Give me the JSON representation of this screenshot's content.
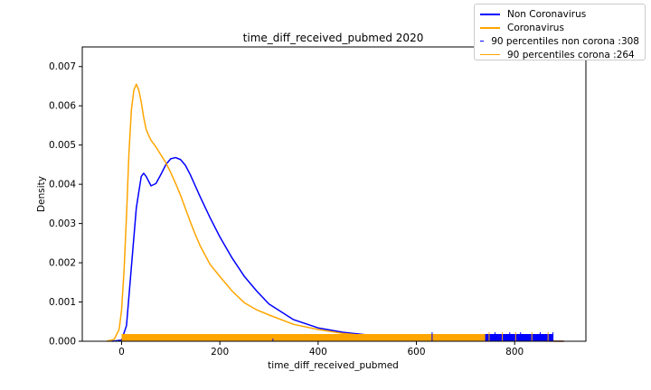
{
  "colors": {
    "non_corona": "#0000ff",
    "corona": "#ffa500"
  },
  "chart_data": {
    "type": "line",
    "title": "time_diff_received_pubmed 2020",
    "xlabel": "time_diff_received_pubmed",
    "ylabel": "Density",
    "xlim": [
      -80,
      945
    ],
    "ylim": [
      0,
      0.0075
    ],
    "xticks": [
      0,
      200,
      400,
      600,
      800
    ],
    "yticks": [
      0.0,
      0.001,
      0.002,
      0.003,
      0.004,
      0.005,
      0.006,
      0.007
    ],
    "ytick_labels": [
      "0.000",
      "0.001",
      "0.002",
      "0.003",
      "0.004",
      "0.005",
      "0.006",
      "0.007"
    ],
    "grid": false,
    "legend_position": "top-right",
    "series": [
      {
        "name": "Non Coronavirus",
        "kind": "density",
        "x": [
          -20,
          0,
          10,
          20,
          30,
          40,
          45,
          50,
          60,
          70,
          80,
          90,
          100,
          110,
          120,
          130,
          140,
          150,
          160,
          180,
          200,
          225,
          250,
          275,
          300,
          350,
          400,
          450,
          500,
          550,
          600,
          650,
          700,
          750,
          800,
          850,
          900
        ],
        "y": [
          0.0,
          3e-05,
          0.0004,
          0.0019,
          0.0034,
          0.0042,
          0.00428,
          0.0042,
          0.00396,
          0.00402,
          0.00425,
          0.0045,
          0.00465,
          0.00468,
          0.00463,
          0.00448,
          0.00424,
          0.00396,
          0.00368,
          0.00315,
          0.00266,
          0.00212,
          0.00165,
          0.00128,
          0.00095,
          0.00055,
          0.00034,
          0.00023,
          0.00016,
          0.00012,
          8e-05,
          6e-05,
          5e-05,
          4e-05,
          3e-05,
          1e-05,
          0.0
        ]
      },
      {
        "name": "Coronavirus",
        "kind": "density",
        "x": [
          -30,
          -15,
          -5,
          0,
          5,
          10,
          15,
          20,
          25,
          30,
          35,
          40,
          45,
          50,
          55,
          60,
          70,
          80,
          90,
          100,
          110,
          120,
          130,
          140,
          150,
          160,
          180,
          200,
          225,
          250,
          275,
          300,
          350,
          400,
          450,
          500,
          550,
          600,
          650,
          700,
          750,
          800,
          850,
          900
        ],
        "y": [
          0.0,
          5e-05,
          0.0003,
          0.0008,
          0.0018,
          0.0032,
          0.0048,
          0.0059,
          0.0064,
          0.00655,
          0.0064,
          0.0061,
          0.0057,
          0.0054,
          0.00525,
          0.00512,
          0.00495,
          0.00475,
          0.00455,
          0.0043,
          0.00402,
          0.00372,
          0.00338,
          0.00304,
          0.00272,
          0.00243,
          0.00196,
          0.00165,
          0.00128,
          0.00098,
          0.0008,
          0.00067,
          0.00043,
          0.0003,
          0.0002,
          0.00014,
          0.0001,
          7e-05,
          5e-05,
          3e-05,
          2e-05,
          1e-05,
          5e-06,
          0.0
        ]
      },
      {
        "name": "90 percentiles non corona :308",
        "kind": "vline",
        "x": 308
      },
      {
        "name": "90 percentiles corona :264",
        "kind": "vline",
        "x": 264
      }
    ],
    "rug": {
      "corona_range": [
        0,
        785
      ],
      "non_corona_range": [
        630,
        878
      ]
    }
  }
}
